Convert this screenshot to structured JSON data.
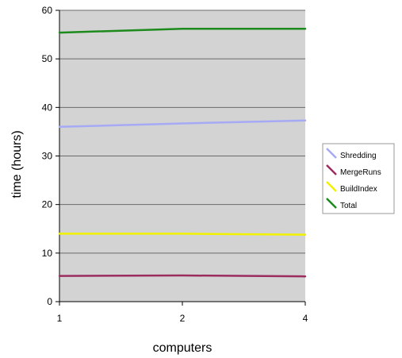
{
  "chart_data": {
    "type": "line",
    "x": [
      "1",
      "2",
      "4"
    ],
    "xlabel": "computers",
    "ylabel": "time (hours)",
    "ylim": [
      0,
      60
    ],
    "yticks": [
      0,
      10,
      20,
      30,
      40,
      50,
      60
    ],
    "grid": true,
    "plot_background": "#d3d3d3",
    "legend_position": "right",
    "series": [
      {
        "name": "Shredding",
        "color": "#a6aaf5",
        "values": [
          36.0,
          36.7,
          37.3
        ]
      },
      {
        "name": "MergeRuns",
        "color": "#9b2c5e",
        "values": [
          5.3,
          5.4,
          5.2
        ]
      },
      {
        "name": "BuildIndex",
        "color": "#f2f200",
        "values": [
          14.0,
          14.0,
          13.8
        ]
      },
      {
        "name": "Total",
        "color": "#1d8a1d",
        "values": [
          55.4,
          56.2,
          56.2
        ]
      }
    ]
  }
}
